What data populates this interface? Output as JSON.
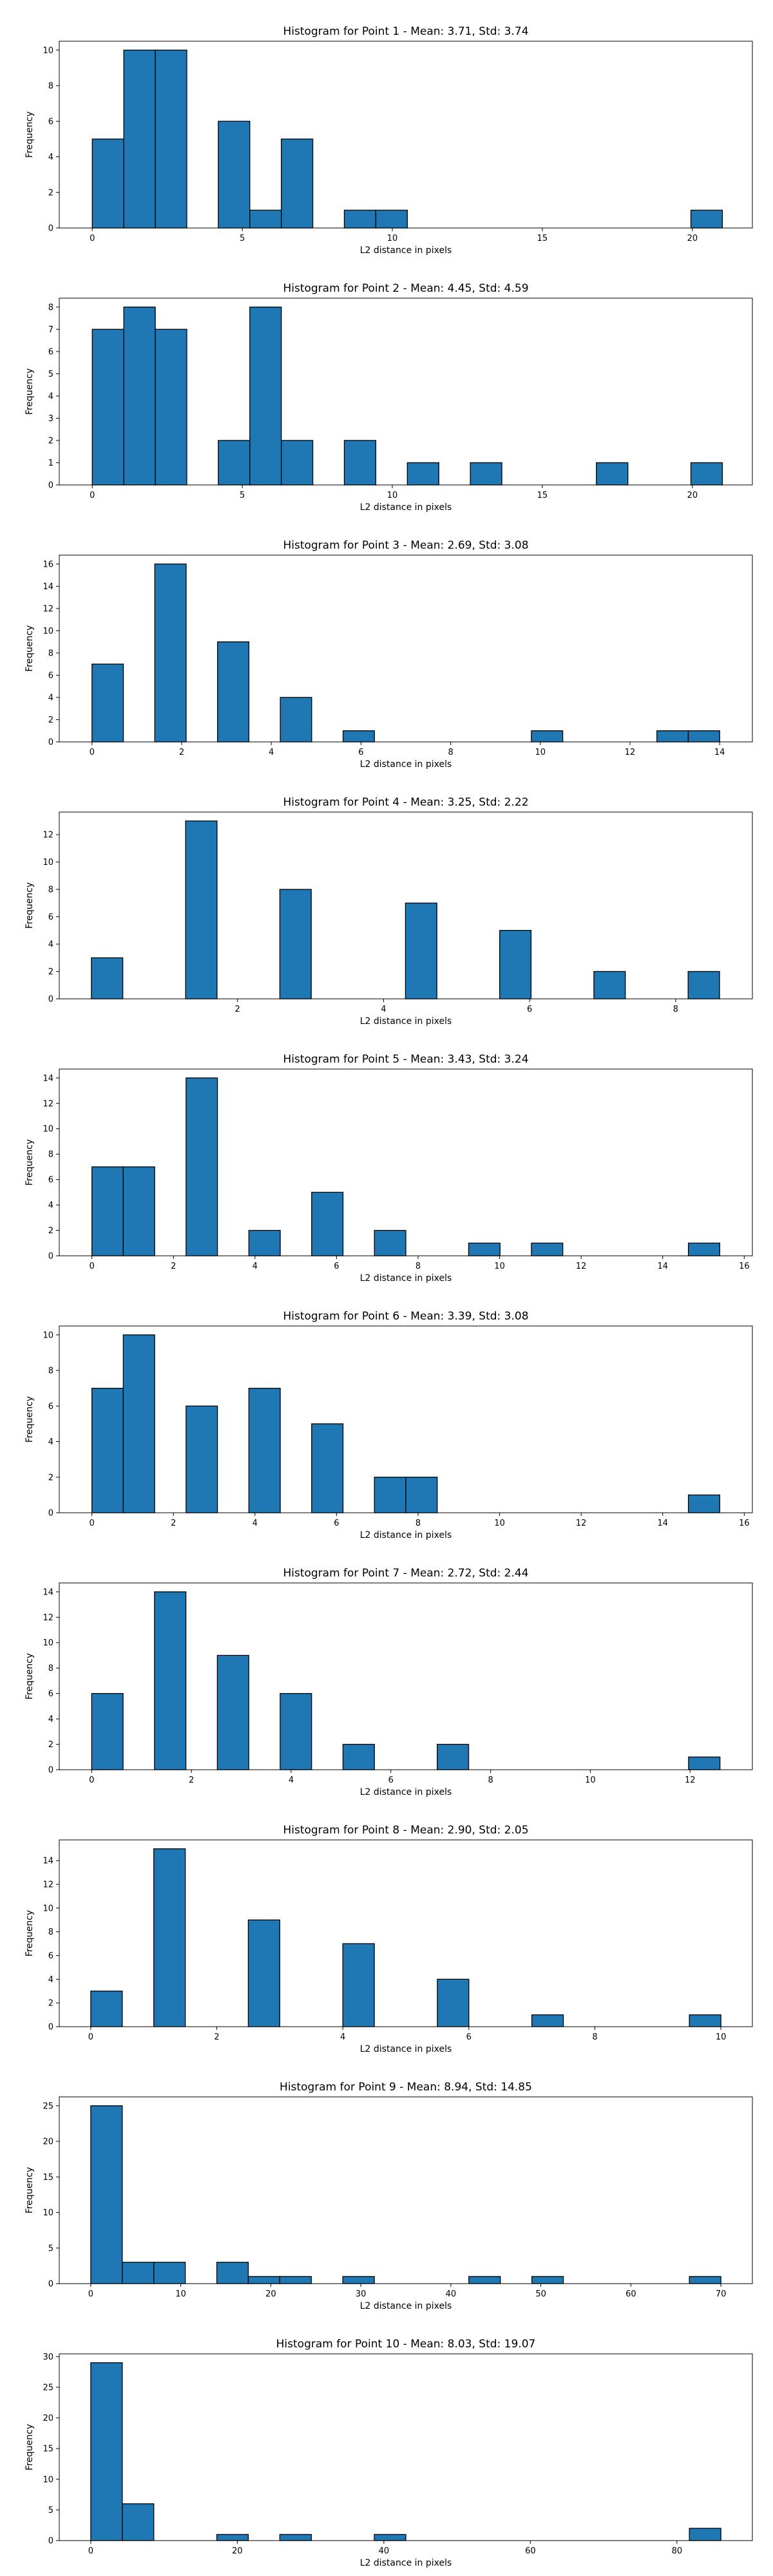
{
  "figure": {
    "bar_color": "#1f77b4",
    "edge_color": "#000000",
    "background": "#ffffff"
  },
  "chart_data": [
    {
      "type": "bar",
      "title": "Histogram for Point 1 - Mean: 3.71, Std: 3.74",
      "xlabel": "L2 distance in pixels",
      "ylabel": "Frequency",
      "xlim": [
        -1.1,
        22.0
      ],
      "ylim": [
        0,
        10.5
      ],
      "xticks": [
        0,
        5,
        10,
        15,
        20
      ],
      "yticks": [
        0,
        2,
        4,
        6,
        8,
        10
      ],
      "bin_edges": [
        0.0,
        1.05,
        2.1,
        3.15,
        4.2,
        5.25,
        6.3,
        7.35,
        8.4,
        9.45,
        10.5,
        11.55,
        12.6,
        13.65,
        14.7,
        15.75,
        16.8,
        17.85,
        18.9,
        19.95,
        21.0
      ],
      "counts": [
        5,
        10,
        10,
        0,
        6,
        1,
        5,
        0,
        1,
        1,
        0,
        0,
        0,
        0,
        0,
        0,
        0,
        0,
        0,
        1
      ]
    },
    {
      "type": "bar",
      "title": "Histogram for Point 2 - Mean: 4.45, Std: 4.59",
      "xlabel": "L2 distance in pixels",
      "ylabel": "Frequency",
      "xlim": [
        -1.1,
        22.0
      ],
      "ylim": [
        0,
        8.4
      ],
      "xticks": [
        0,
        5,
        10,
        15,
        20
      ],
      "yticks": [
        0,
        1,
        2,
        3,
        4,
        5,
        6,
        7,
        8
      ],
      "bin_edges": [
        0.0,
        1.05,
        2.1,
        3.15,
        4.2,
        5.25,
        6.3,
        7.35,
        8.4,
        9.45,
        10.5,
        11.55,
        12.6,
        13.65,
        14.7,
        15.75,
        16.8,
        17.85,
        18.9,
        19.95,
        21.0
      ],
      "counts": [
        7,
        8,
        7,
        0,
        2,
        8,
        2,
        0,
        2,
        0,
        1,
        0,
        1,
        0,
        0,
        0,
        1,
        0,
        0,
        1
      ]
    },
    {
      "type": "bar",
      "title": "Histogram for Point 3 - Mean: 2.69, Std: 3.08",
      "xlabel": "L2 distance in pixels",
      "ylabel": "Frequency",
      "xlim": [
        -0.73,
        14.73
      ],
      "ylim": [
        0,
        16.8
      ],
      "xticks": [
        0,
        2,
        4,
        6,
        8,
        10,
        12,
        14
      ],
      "yticks": [
        0,
        2,
        4,
        6,
        8,
        10,
        12,
        14,
        16
      ],
      "bin_edges": [
        0.0,
        0.7,
        1.4,
        2.1,
        2.8,
        3.5,
        4.2,
        4.9,
        5.6,
        6.3,
        7.0,
        7.7,
        8.4,
        9.1,
        9.8,
        10.5,
        11.2,
        11.9,
        12.6,
        13.3,
        14.0
      ],
      "counts": [
        7,
        0,
        16,
        0,
        9,
        0,
        4,
        0,
        1,
        0,
        0,
        0,
        0,
        0,
        1,
        0,
        0,
        0,
        1,
        1
      ]
    },
    {
      "type": "bar",
      "title": "Histogram for Point 4 - Mean: 3.25, Std: 2.22",
      "xlabel": "L2 distance in pixels",
      "ylabel": "Frequency",
      "xlim": [
        -0.44,
        9.05
      ],
      "ylim": [
        0,
        13.65
      ],
      "xticks": [
        2,
        4,
        6,
        8
      ],
      "yticks": [
        0,
        2,
        4,
        6,
        8,
        10,
        12
      ],
      "bin_edges": [
        0.0,
        0.43,
        0.86,
        1.29,
        1.72,
        2.15,
        2.58,
        3.01,
        3.44,
        3.87,
        4.3,
        4.73,
        5.16,
        5.59,
        6.02,
        6.45,
        6.88,
        7.31,
        7.74,
        8.17,
        8.6
      ],
      "counts": [
        3,
        0,
        0,
        13,
        0,
        0,
        8,
        0,
        0,
        0,
        7,
        0,
        0,
        5,
        0,
        0,
        2,
        0,
        0,
        2
      ]
    },
    {
      "type": "bar",
      "title": "Histogram for Point 5 - Mean: 3.43, Std: 3.24",
      "xlabel": "L2 distance in pixels",
      "ylabel": "Frequency",
      "xlim": [
        -0.8,
        16.2
      ],
      "ylim": [
        0,
        14.7
      ],
      "xticks": [
        0,
        2,
        4,
        6,
        8,
        10,
        12,
        14,
        16
      ],
      "yticks": [
        0,
        2,
        4,
        6,
        8,
        10,
        12,
        14
      ],
      "bin_edges": [
        0.0,
        0.77,
        1.54,
        2.31,
        3.08,
        3.85,
        4.62,
        5.39,
        6.16,
        6.93,
        7.7,
        8.47,
        9.24,
        10.01,
        10.78,
        11.55,
        12.32,
        13.09,
        13.86,
        14.63,
        15.4
      ],
      "counts": [
        7,
        7,
        0,
        14,
        0,
        2,
        0,
        5,
        0,
        2,
        0,
        0,
        1,
        0,
        1,
        0,
        0,
        0,
        0,
        1
      ]
    },
    {
      "type": "bar",
      "title": "Histogram for Point 6 - Mean: 3.39, Std: 3.08",
      "xlabel": "L2 distance in pixels",
      "ylabel": "Frequency",
      "xlim": [
        -0.8,
        16.2
      ],
      "ylim": [
        0,
        10.5
      ],
      "xticks": [
        0,
        2,
        4,
        6,
        8,
        10,
        12,
        14,
        16
      ],
      "yticks": [
        0,
        2,
        4,
        6,
        8,
        10
      ],
      "bin_edges": [
        0.0,
        0.77,
        1.54,
        2.31,
        3.08,
        3.85,
        4.62,
        5.39,
        6.16,
        6.93,
        7.7,
        8.47,
        9.24,
        10.01,
        10.78,
        11.55,
        12.32,
        13.09,
        13.86,
        14.63,
        15.4
      ],
      "counts": [
        7,
        10,
        0,
        6,
        0,
        7,
        0,
        5,
        0,
        2,
        2,
        0,
        0,
        0,
        0,
        0,
        0,
        0,
        0,
        1
      ]
    },
    {
      "type": "bar",
      "title": "Histogram for Point 7 - Mean: 2.72, Std: 2.44",
      "xlabel": "L2 distance in pixels",
      "ylabel": "Frequency",
      "xlim": [
        -0.65,
        13.25
      ],
      "ylim": [
        0,
        14.7
      ],
      "xticks": [
        0,
        2,
        4,
        6,
        8,
        10,
        12
      ],
      "yticks": [
        0,
        2,
        4,
        6,
        8,
        10,
        12,
        14
      ],
      "bin_edges": [
        0.0,
        0.63,
        1.26,
        1.89,
        2.52,
        3.15,
        3.78,
        4.41,
        5.04,
        5.67,
        6.3,
        6.93,
        7.56,
        8.19,
        8.82,
        9.45,
        10.08,
        10.71,
        11.34,
        11.97,
        12.6
      ],
      "counts": [
        6,
        0,
        14,
        0,
        9,
        0,
        6,
        0,
        2,
        0,
        0,
        2,
        0,
        0,
        0,
        0,
        0,
        0,
        0,
        1
      ]
    },
    {
      "type": "bar",
      "title": "Histogram for Point 8 - Mean: 2.90, Std: 2.05",
      "xlabel": "L2 distance in pixels",
      "ylabel": "Frequency",
      "xlim": [
        -0.5,
        10.5
      ],
      "ylim": [
        0,
        15.75
      ],
      "xticks": [
        0,
        2,
        4,
        6,
        8,
        10
      ],
      "yticks": [
        0,
        2,
        4,
        6,
        8,
        10,
        12,
        14
      ],
      "bin_edges": [
        0.0,
        0.5,
        1.0,
        1.5,
        2.0,
        2.5,
        3.0,
        3.5,
        4.0,
        4.5,
        5.0,
        5.5,
        6.0,
        6.5,
        7.0,
        7.5,
        8.0,
        8.5,
        9.0,
        9.5,
        10.0
      ],
      "counts": [
        3,
        0,
        15,
        0,
        0,
        9,
        0,
        0,
        7,
        0,
        0,
        4,
        0,
        0,
        1,
        0,
        0,
        0,
        0,
        1
      ]
    },
    {
      "type": "bar",
      "title": "Histogram for Point 9 - Mean: 8.94, Std: 14.85",
      "xlabel": "L2 distance in pixels",
      "ylabel": "Frequency",
      "xlim": [
        -3.5,
        73.5
      ],
      "ylim": [
        0,
        26.25
      ],
      "xticks": [
        0,
        10,
        20,
        30,
        40,
        50,
        60,
        70
      ],
      "yticks": [
        0,
        5,
        10,
        15,
        20,
        25
      ],
      "bin_edges": [
        0.0,
        3.5,
        7.0,
        10.5,
        14.0,
        17.5,
        21.0,
        24.5,
        28.0,
        31.5,
        35.0,
        38.5,
        42.0,
        45.5,
        49.0,
        52.5,
        56.0,
        59.5,
        63.0,
        66.5,
        70.0
      ],
      "counts": [
        25,
        3,
        3,
        0,
        3,
        1,
        1,
        0,
        1,
        0,
        0,
        0,
        1,
        0,
        1,
        0,
        0,
        0,
        0,
        1
      ]
    },
    {
      "type": "bar",
      "title": "Histogram for Point 10 - Mean: 8.03, Std: 19.07",
      "xlabel": "L2 distance in pixels",
      "ylabel": "Frequency",
      "xlim": [
        -4.3,
        90.3
      ],
      "ylim": [
        0,
        30.45
      ],
      "xticks": [
        0,
        20,
        40,
        60,
        80
      ],
      "yticks": [
        0,
        5,
        10,
        15,
        20,
        25,
        30
      ],
      "bin_edges": [
        0.0,
        4.3,
        8.6,
        12.9,
        17.2,
        21.5,
        25.8,
        30.1,
        34.4,
        38.7,
        43.0,
        47.3,
        51.6,
        55.9,
        60.2,
        64.5,
        68.8,
        73.1,
        77.4,
        81.7,
        86.0
      ],
      "counts": [
        29,
        6,
        0,
        0,
        1,
        0,
        1,
        0,
        0,
        1,
        0,
        0,
        0,
        0,
        0,
        0,
        0,
        0,
        0,
        2
      ]
    }
  ]
}
